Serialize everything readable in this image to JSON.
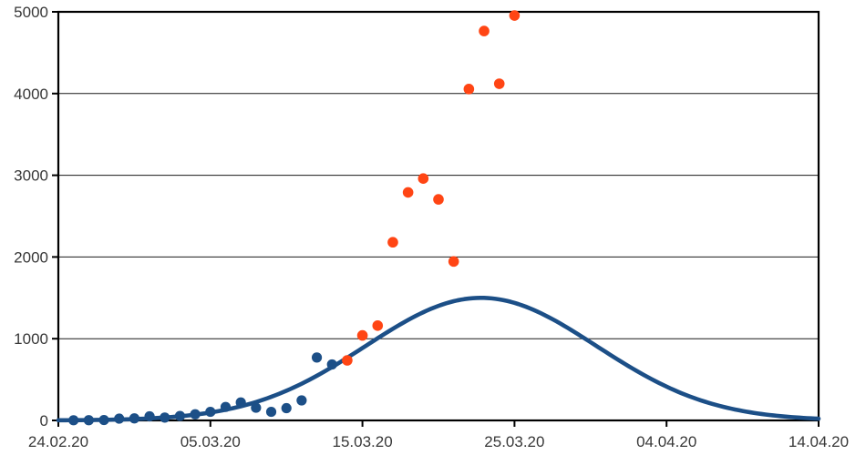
{
  "chart_data": {
    "type": "scatter",
    "title": "",
    "background_color": "#FFFFFF",
    "plot_border_color": "#000000",
    "gridline_color": "#1A1A1A",
    "label_color": "#383838",
    "x_axis": {
      "type": "date",
      "tick_labels": [
        "24.02.20",
        "05.03.20",
        "15.03.20",
        "25.03.20",
        "04.04.20",
        "14.04.20"
      ],
      "tick_days": [
        0,
        10,
        20,
        30,
        40,
        50
      ],
      "range_days": [
        0,
        50
      ],
      "gridlines": false
    },
    "y_axis": {
      "tick_labels": [
        "0",
        "1000",
        "2000",
        "3000",
        "4000",
        "5000"
      ],
      "tick_values": [
        0,
        1000,
        2000,
        3000,
        4000,
        5000
      ],
      "range": [
        0,
        5000
      ],
      "gridlines": true
    },
    "legend": "none",
    "series": [
      {
        "name": "observed-daily-values-early",
        "type": "scatter",
        "color": "#1C4F87",
        "marker_radius": 5.6,
        "points": [
          {
            "date": "25.02.20",
            "day": 1,
            "value": 2
          },
          {
            "date": "26.02.20",
            "day": 2,
            "value": 3
          },
          {
            "date": "27.02.20",
            "day": 3,
            "value": 5
          },
          {
            "date": "28.02.20",
            "day": 4,
            "value": 22
          },
          {
            "date": "29.02.20",
            "day": 5,
            "value": 25
          },
          {
            "date": "01.03.20",
            "day": 6,
            "value": 50
          },
          {
            "date": "02.03.20",
            "day": 7,
            "value": 35
          },
          {
            "date": "03.03.20",
            "day": 8,
            "value": 55
          },
          {
            "date": "04.03.20",
            "day": 9,
            "value": 75
          },
          {
            "date": "05.03.20",
            "day": 10,
            "value": 105
          },
          {
            "date": "06.03.20",
            "day": 11,
            "value": 165
          },
          {
            "date": "07.03.20",
            "day": 12,
            "value": 220
          },
          {
            "date": "08.03.20",
            "day": 13,
            "value": 155
          },
          {
            "date": "09.03.20",
            "day": 14,
            "value": 105
          },
          {
            "date": "10.03.20",
            "day": 15,
            "value": 150
          },
          {
            "date": "11.03.20",
            "day": 16,
            "value": 245
          },
          {
            "date": "12.03.20",
            "day": 17,
            "value": 770
          },
          {
            "date": "13.03.20",
            "day": 18,
            "value": 685
          }
        ]
      },
      {
        "name": "observed-daily-values-recent",
        "type": "scatter",
        "color": "#FF4514",
        "marker_radius": 5.8,
        "points": [
          {
            "date": "14.03.20",
            "day": 19,
            "value": 735
          },
          {
            "date": "15.03.20",
            "day": 20,
            "value": 1040
          },
          {
            "date": "16.03.20",
            "day": 21,
            "value": 1160
          },
          {
            "date": "17.03.20",
            "day": 22,
            "value": 2180
          },
          {
            "date": "18.03.20",
            "day": 23,
            "value": 2790
          },
          {
            "date": "19.03.20",
            "day": 24,
            "value": 2960
          },
          {
            "date": "20.03.20",
            "day": 25,
            "value": 2705
          },
          {
            "date": "21.03.20",
            "day": 26,
            "value": 1945
          },
          {
            "date": "22.03.20",
            "day": 27,
            "value": 4055
          },
          {
            "date": "23.03.20",
            "day": 28,
            "value": 4765
          },
          {
            "date": "24.03.20",
            "day": 29,
            "value": 4120
          },
          {
            "date": "25.03.20",
            "day": 30,
            "value": 4955
          }
        ]
      },
      {
        "name": "gaussian-fit-curve",
        "type": "line",
        "model": "gaussian",
        "color": "#1C4F87",
        "stroke_width": 4.6,
        "amplitude": 1500,
        "peak_day": 27.8,
        "peak_date": "23.03.20",
        "sigma_days": 7.6
      }
    ]
  }
}
